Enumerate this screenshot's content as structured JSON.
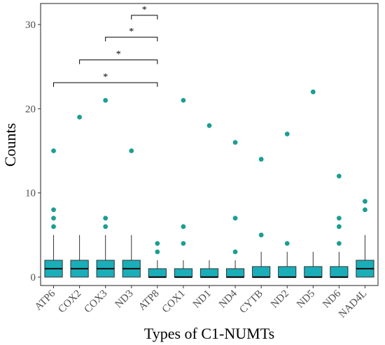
{
  "chart_data": {
    "type": "boxplot",
    "xlabel": "Types of C1-NUMTs",
    "ylabel": "Counts",
    "ylim": [
      -1,
      32.5
    ],
    "yticks": [
      0,
      10,
      20,
      30
    ],
    "grid": false,
    "colors": {
      "box_fill": "#1aaeb9",
      "outlier": "#1a9f91",
      "whisker": "#333333",
      "frame": "#333333"
    },
    "categories": [
      "ATP6",
      "COX2",
      "COX3",
      "ND3",
      "ATP8",
      "COX1",
      "ND1",
      "ND4",
      "CYTB",
      "ND2",
      "ND5",
      "ND6",
      "NAD4L"
    ],
    "boxes": [
      {
        "q1": 0,
        "median": 1,
        "q3": 2,
        "whisker_low": 0,
        "whisker_high": 5,
        "outliers": [
          15,
          8,
          7,
          6
        ]
      },
      {
        "q1": 0,
        "median": 1,
        "q3": 2,
        "whisker_low": 0,
        "whisker_high": 5,
        "outliers": [
          19
        ]
      },
      {
        "q1": 0,
        "median": 1,
        "q3": 2,
        "whisker_low": 0,
        "whisker_high": 5,
        "outliers": [
          21,
          7,
          6
        ]
      },
      {
        "q1": 0,
        "median": 1,
        "q3": 2,
        "whisker_low": 0,
        "whisker_high": 5,
        "outliers": [
          15
        ]
      },
      {
        "q1": 0,
        "median": 0,
        "q3": 1,
        "whisker_low": 0,
        "whisker_high": 2,
        "outliers": [
          4,
          3
        ]
      },
      {
        "q1": 0,
        "median": 0,
        "q3": 1,
        "whisker_low": 0,
        "whisker_high": 2,
        "outliers": [
          21,
          6,
          4
        ]
      },
      {
        "q1": 0,
        "median": 0,
        "q3": 1,
        "whisker_low": 0,
        "whisker_high": 2,
        "outliers": [
          18
        ]
      },
      {
        "q1": 0,
        "median": 0,
        "q3": 1,
        "whisker_low": 0,
        "whisker_high": 2,
        "outliers": [
          16,
          7,
          3
        ]
      },
      {
        "q1": 0,
        "median": 0,
        "q3": 1.25,
        "whisker_low": 0,
        "whisker_high": 3,
        "outliers": [
          14,
          5
        ]
      },
      {
        "q1": 0,
        "median": 0,
        "q3": 1.25,
        "whisker_low": 0,
        "whisker_high": 3,
        "outliers": [
          17,
          4
        ]
      },
      {
        "q1": 0,
        "median": 0,
        "q3": 1.25,
        "whisker_low": 0,
        "whisker_high": 3,
        "outliers": [
          22
        ]
      },
      {
        "q1": 0,
        "median": 0,
        "q3": 1.25,
        "whisker_low": 0,
        "whisker_high": 3,
        "outliers": [
          12,
          7,
          6,
          4
        ]
      },
      {
        "q1": 0,
        "median": 1,
        "q3": 2,
        "whisker_low": 0,
        "whisker_high": 5,
        "outliers": [
          9,
          8
        ]
      }
    ],
    "significance": [
      {
        "from": "ND3",
        "to": "ATP8",
        "y": 31.1,
        "label": "*"
      },
      {
        "from": "COX3",
        "to": "ATP8",
        "y": 28.5,
        "label": "*"
      },
      {
        "from": "COX2",
        "to": "ATP8",
        "y": 25.8,
        "label": "*"
      },
      {
        "from": "ATP6",
        "to": "ATP8",
        "y": 23.1,
        "label": "*"
      }
    ]
  }
}
